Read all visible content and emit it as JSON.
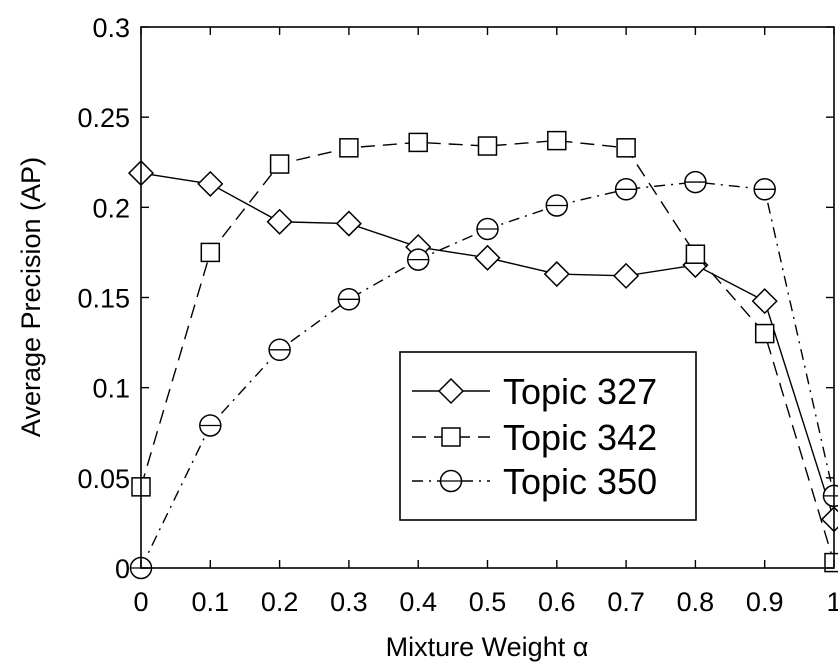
{
  "chart_data": {
    "type": "line",
    "title": "",
    "xlabel": "Mixture Weight α",
    "ylabel": "Average Precision (AP)",
    "xlim": [
      0,
      1
    ],
    "ylim": [
      0,
      0.3
    ],
    "x_ticks": [
      0,
      0.1,
      0.2,
      0.3,
      0.4,
      0.5,
      0.6,
      0.7,
      0.8,
      0.9,
      1
    ],
    "x_tick_labels": [
      "0",
      "0.1",
      "0.2",
      "0.3",
      "0.4",
      "0.5",
      "0.6",
      "0.7",
      "0.8",
      "0.9",
      "1"
    ],
    "y_ticks": [
      0,
      0.05,
      0.1,
      0.15,
      0.2,
      0.25,
      0.3
    ],
    "y_tick_labels": [
      "0",
      "0.05",
      "0.1",
      "0.15",
      "0.2",
      "0.25",
      "0.3"
    ],
    "grid": false,
    "legend_position": "lower-right",
    "x": [
      0,
      0.1,
      0.2,
      0.3,
      0.4,
      0.5,
      0.6,
      0.7,
      0.8,
      0.9,
      1
    ],
    "series": [
      {
        "name": "Topic 327",
        "marker": "diamond",
        "line_style": "solid",
        "color": "#000000",
        "values": [
          0.219,
          0.213,
          0.192,
          0.191,
          0.178,
          0.172,
          0.163,
          0.162,
          0.168,
          0.148,
          0.027
        ]
      },
      {
        "name": "Topic 342",
        "marker": "square",
        "line_style": "dashed",
        "color": "#000000",
        "values": [
          0.045,
          0.175,
          0.224,
          0.233,
          0.236,
          0.234,
          0.237,
          0.233,
          0.174,
          0.13,
          0.003
        ]
      },
      {
        "name": "Topic 350",
        "marker": "circle",
        "line_style": "dashdot",
        "color": "#000000",
        "values": [
          0.0,
          0.079,
          0.121,
          0.149,
          0.171,
          0.188,
          0.201,
          0.21,
          0.214,
          0.21,
          0.04
        ]
      }
    ]
  }
}
